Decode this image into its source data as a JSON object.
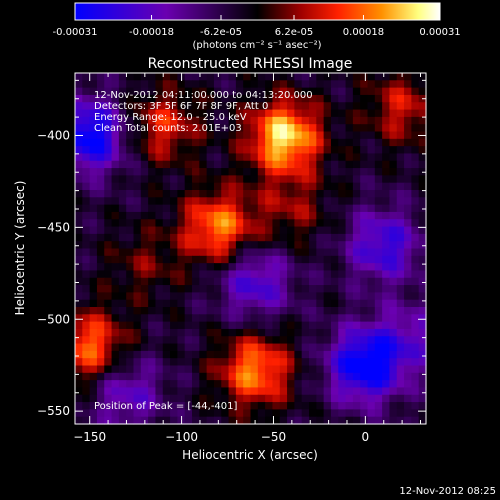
{
  "colorbar": {
    "ticks": [
      "-0.00031",
      "-0.00018",
      "-6.2e-05",
      "6.2e-05",
      "0.00018",
      "0.00031"
    ],
    "tick_values": [
      -0.00031,
      -0.00018,
      -6.2e-05,
      6.2e-05,
      0.00018,
      0.00031
    ],
    "range": [
      -0.00031,
      0.00031
    ],
    "unit_label": "(photons cm⁻² s⁻¹ asec⁻²)",
    "colors": [
      "#0000ff",
      "#6a00b0",
      "#000000",
      "#a00000",
      "#ff2000",
      "#ff9000",
      "#ffff80",
      "#ffffff"
    ]
  },
  "info": {
    "time_range": "12-Nov-2012 04:11:00.000 to 04:13:20.000",
    "detectors": "Detectors: 3F 5F 6F 7F 8F 9F, Att 0",
    "energy": "Energy Range: 12.0 - 25.0 keV",
    "clean": "Clean     Total counts: 2.01E+03",
    "peak": "Position of Peak = [-44,-401]"
  },
  "footer_timestamp": "12-Nov-2012 08:25",
  "chart_data": {
    "type": "heatmap",
    "title": "Reconstructed RHESSI Image",
    "xlabel": "Heliocentric X (arcsec)",
    "ylabel": "Heliocentric Y (arcsec)",
    "xlim": [
      -158,
      33
    ],
    "ylim": [
      -557,
      -366
    ],
    "xticks": [
      -150,
      -100,
      -50,
      0
    ],
    "yticks": [
      -400,
      -450,
      -500,
      -550
    ],
    "grid_size": [
      48,
      48
    ],
    "peak_position": [
      -44,
      -401
    ],
    "features": [
      {
        "x": -44,
        "y": -401,
        "intensity": 0.00031
      },
      {
        "x": -80,
        "y": -450,
        "intensity": 0.00024
      },
      {
        "x": -60,
        "y": -528,
        "intensity": 0.00024
      },
      {
        "x": -150,
        "y": -515,
        "intensity": 0.00022
      },
      {
        "x": -110,
        "y": -395,
        "intensity": 0.00016
      },
      {
        "x": 20,
        "y": -385,
        "intensity": 0.00014
      },
      {
        "x": -40,
        "y": -440,
        "intensity": 0.0001
      },
      {
        "x": -120,
        "y": -470,
        "intensity": 8e-05
      },
      {
        "x": -150,
        "y": -400,
        "intensity": -0.00028
      },
      {
        "x": 0,
        "y": -525,
        "intensity": -0.0003
      },
      {
        "x": 10,
        "y": -460,
        "intensity": -0.0002
      },
      {
        "x": -60,
        "y": -480,
        "intensity": -0.00018
      },
      {
        "x": -130,
        "y": -540,
        "intensity": -0.00015
      },
      {
        "x": 25,
        "y": -510,
        "intensity": -0.00012
      }
    ]
  }
}
